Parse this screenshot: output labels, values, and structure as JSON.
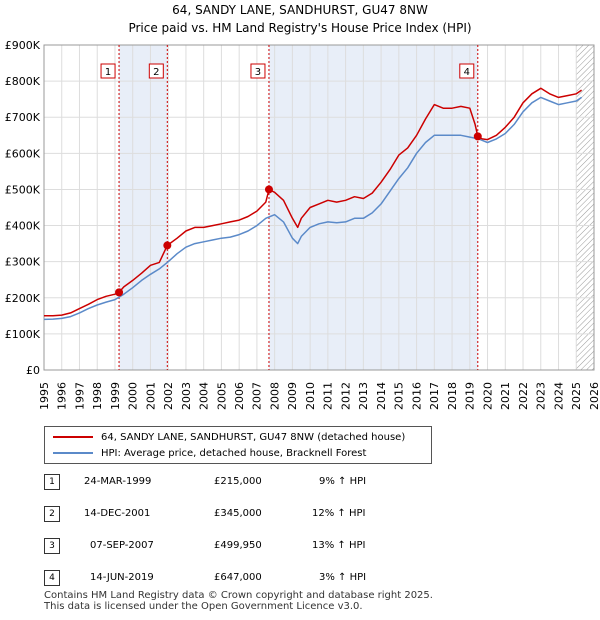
{
  "chart_data": {
    "type": "line",
    "title": "64, SANDY LANE, SANDHURST, GU47 8NW",
    "subtitle": "Price paid vs. HM Land Registry's House Price Index (HPI)",
    "xlim": [
      1995,
      2026
    ],
    "ylim": [
      0,
      900000
    ],
    "x_ticks": [
      1995,
      1996,
      1997,
      1998,
      1999,
      2000,
      2001,
      2002,
      2003,
      2004,
      2005,
      2006,
      2007,
      2008,
      2009,
      2010,
      2011,
      2012,
      2013,
      2014,
      2015,
      2016,
      2017,
      2018,
      2019,
      2020,
      2021,
      2022,
      2023,
      2024,
      2025,
      2026
    ],
    "y_ticks": [
      {
        "value": 0,
        "label": "£0"
      },
      {
        "value": 100000,
        "label": "£100K"
      },
      {
        "value": 200000,
        "label": "£200K"
      },
      {
        "value": 300000,
        "label": "£300K"
      },
      {
        "value": 400000,
        "label": "£400K"
      },
      {
        "value": 500000,
        "label": "£500K"
      },
      {
        "value": 600000,
        "label": "£600K"
      },
      {
        "value": 700000,
        "label": "£700K"
      },
      {
        "value": 800000,
        "label": "£800K"
      },
      {
        "value": 900000,
        "label": "£900K"
      }
    ],
    "grid": true,
    "shaded_periods": [
      [
        1999.23,
        2001.95
      ],
      [
        2007.68,
        2019.45
      ]
    ],
    "forecast_start": 2025.0,
    "series": [
      {
        "name": "64, SANDY LANE, SANDHURST, GU47 8NW (detached house)",
        "color": "#cc0000",
        "x": [
          1995.0,
          1995.5,
          1996.0,
          1996.5,
          1997.0,
          1997.5,
          1998.0,
          1998.5,
          1999.0,
          1999.23,
          1999.5,
          2000.0,
          2000.5,
          2001.0,
          2001.5,
          2001.95,
          2002.5,
          2003.0,
          2003.5,
          2004.0,
          2004.5,
          2005.0,
          2005.5,
          2006.0,
          2006.5,
          2007.0,
          2007.5,
          2007.68,
          2008.0,
          2008.5,
          2009.0,
          2009.3,
          2009.5,
          2010.0,
          2010.5,
          2011.0,
          2011.5,
          2012.0,
          2012.5,
          2013.0,
          2013.5,
          2014.0,
          2014.5,
          2015.0,
          2015.5,
          2016.0,
          2016.5,
          2017.0,
          2017.5,
          2018.0,
          2018.5,
          2019.0,
          2019.3,
          2019.45,
          2019.7,
          2020.0,
          2020.5,
          2021.0,
          2021.5,
          2022.0,
          2022.5,
          2023.0,
          2023.5,
          2024.0,
          2024.5,
          2025.0,
          2025.3
        ],
        "values": [
          150000,
          150000,
          152000,
          158000,
          170000,
          182000,
          195000,
          204000,
          210000,
          215000,
          230000,
          248000,
          268000,
          290000,
          298000,
          345000,
          365000,
          385000,
          395000,
          395000,
          400000,
          405000,
          410000,
          415000,
          425000,
          440000,
          465000,
          499950,
          492000,
          470000,
          420000,
          395000,
          420000,
          450000,
          460000,
          470000,
          465000,
          470000,
          480000,
          475000,
          490000,
          520000,
          555000,
          595000,
          615000,
          650000,
          695000,
          735000,
          725000,
          725000,
          730000,
          725000,
          680000,
          647000,
          640000,
          638000,
          650000,
          672000,
          700000,
          740000,
          765000,
          780000,
          765000,
          755000,
          760000,
          765000,
          775000
        ]
      },
      {
        "name": "HPI: Average price, detached house, Bracknell Forest",
        "color": "#5b8ac9",
        "x": [
          1995.0,
          1995.5,
          1996.0,
          1996.5,
          1997.0,
          1997.5,
          1998.0,
          1998.5,
          1999.0,
          1999.5,
          2000.0,
          2000.5,
          2001.0,
          2001.5,
          2002.0,
          2002.5,
          2003.0,
          2003.5,
          2004.0,
          2004.5,
          2005.0,
          2005.5,
          2006.0,
          2006.5,
          2007.0,
          2007.5,
          2008.0,
          2008.5,
          2009.0,
          2009.3,
          2009.5,
          2010.0,
          2010.5,
          2011.0,
          2011.5,
          2012.0,
          2012.5,
          2013.0,
          2013.5,
          2014.0,
          2014.5,
          2015.0,
          2015.5,
          2016.0,
          2016.5,
          2017.0,
          2017.5,
          2018.0,
          2018.5,
          2019.0,
          2019.5,
          2020.0,
          2020.5,
          2021.0,
          2021.5,
          2022.0,
          2022.5,
          2023.0,
          2023.5,
          2024.0,
          2024.5,
          2025.0,
          2025.3
        ],
        "values": [
          140000,
          141000,
          143000,
          148000,
          158000,
          170000,
          180000,
          188000,
          195000,
          210000,
          228000,
          248000,
          265000,
          280000,
          300000,
          322000,
          340000,
          350000,
          355000,
          360000,
          365000,
          368000,
          375000,
          385000,
          400000,
          420000,
          430000,
          410000,
          365000,
          350000,
          370000,
          395000,
          405000,
          410000,
          408000,
          410000,
          420000,
          420000,
          435000,
          460000,
          495000,
          530000,
          560000,
          600000,
          630000,
          650000,
          650000,
          650000,
          650000,
          645000,
          640000,
          630000,
          640000,
          655000,
          680000,
          715000,
          740000,
          755000,
          745000,
          735000,
          740000,
          745000,
          755000
        ]
      }
    ],
    "sales": [
      {
        "label": "1",
        "x": 1999.23,
        "value": 215000
      },
      {
        "label": "2",
        "x": 2001.95,
        "value": 345000
      },
      {
        "label": "3",
        "x": 2007.68,
        "value": 499950
      },
      {
        "label": "4",
        "x": 2019.45,
        "value": 647000
      }
    ]
  },
  "legend": {
    "property": "64, SANDY LANE, SANDHURST, GU47 8NW (detached house)",
    "hpi": "HPI: Average price, detached house, Bracknell Forest"
  },
  "table": [
    {
      "num": "1",
      "date": "24-MAR-1999",
      "price": "£215,000",
      "hpi": "9% ↑ HPI"
    },
    {
      "num": "2",
      "date": "14-DEC-2001",
      "price": "£345,000",
      "hpi": "12% ↑ HPI"
    },
    {
      "num": "3",
      "date": "07-SEP-2007",
      "price": "£499,950",
      "hpi": "13% ↑ HPI"
    },
    {
      "num": "4",
      "date": "14-JUN-2019",
      "price": "£647,000",
      "hpi": "3% ↑ HPI"
    }
  ],
  "footer": {
    "line1": "Contains HM Land Registry data © Crown copyright and database right 2025.",
    "line2": "This data is licensed under the Open Government Licence v3.0."
  },
  "colors": {
    "property": "#cc0000",
    "hpi": "#5b8ac9",
    "shade": "#e8eef8"
  }
}
